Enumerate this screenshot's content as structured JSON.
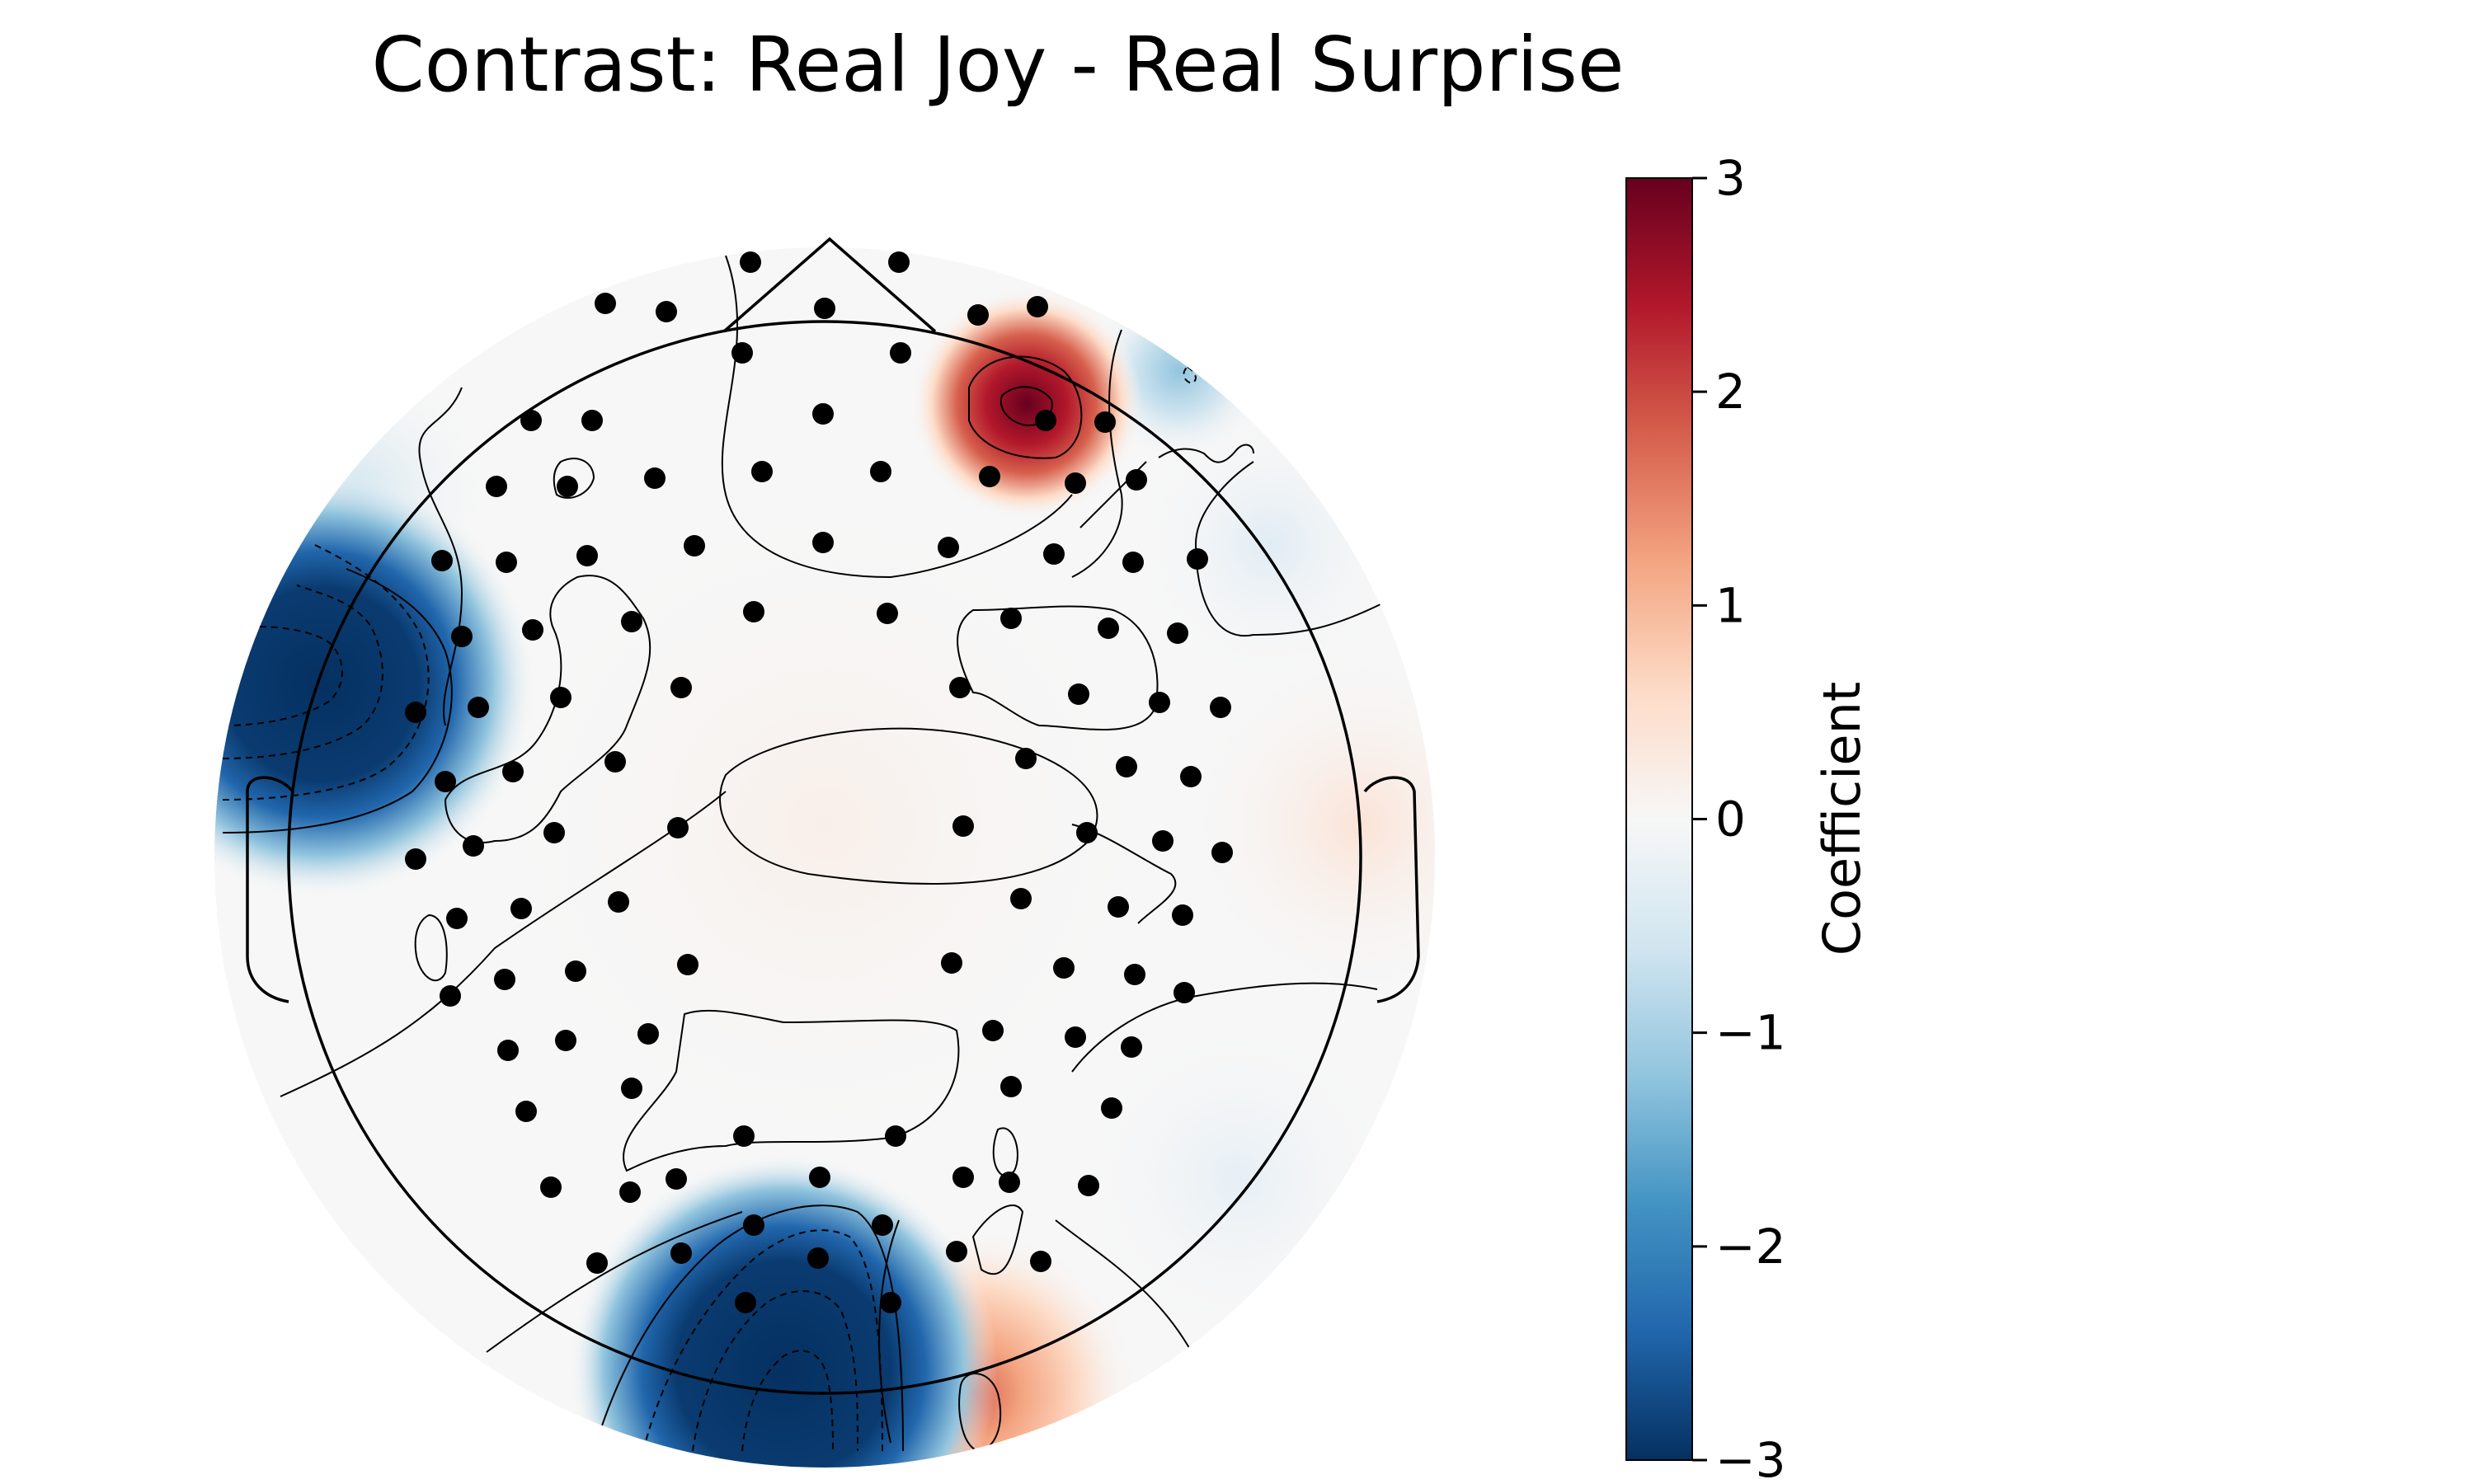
{
  "chart_data": {
    "type": "heatmap",
    "subtype": "eeg-topomap",
    "title": "Contrast: Real Joy - Real Surprise",
    "colormap": "RdBu_r",
    "colors": {
      "min": "#053061",
      "mid": "#f7f7f7",
      "max": "#67001f",
      "sensor": "#000000",
      "contour": "#000000"
    },
    "colorbar": {
      "label": "Coefficient",
      "range": [
        -3,
        3
      ],
      "ticks": [
        3,
        2,
        1,
        0,
        -1,
        -2,
        -3
      ],
      "tick_labels": [
        "3",
        "2",
        "1",
        "0",
        "−1",
        "−2",
        "−3"
      ]
    },
    "sensor_count": 128,
    "extrema": [
      {
        "region": "right frontal",
        "value": 3
      },
      {
        "region": "left temporal",
        "value": -3
      },
      {
        "region": "midline occipital",
        "value": -3
      },
      {
        "region": "right occipital",
        "value": 1.5
      },
      {
        "region": "right frontal edge",
        "value": -1
      }
    ]
  }
}
